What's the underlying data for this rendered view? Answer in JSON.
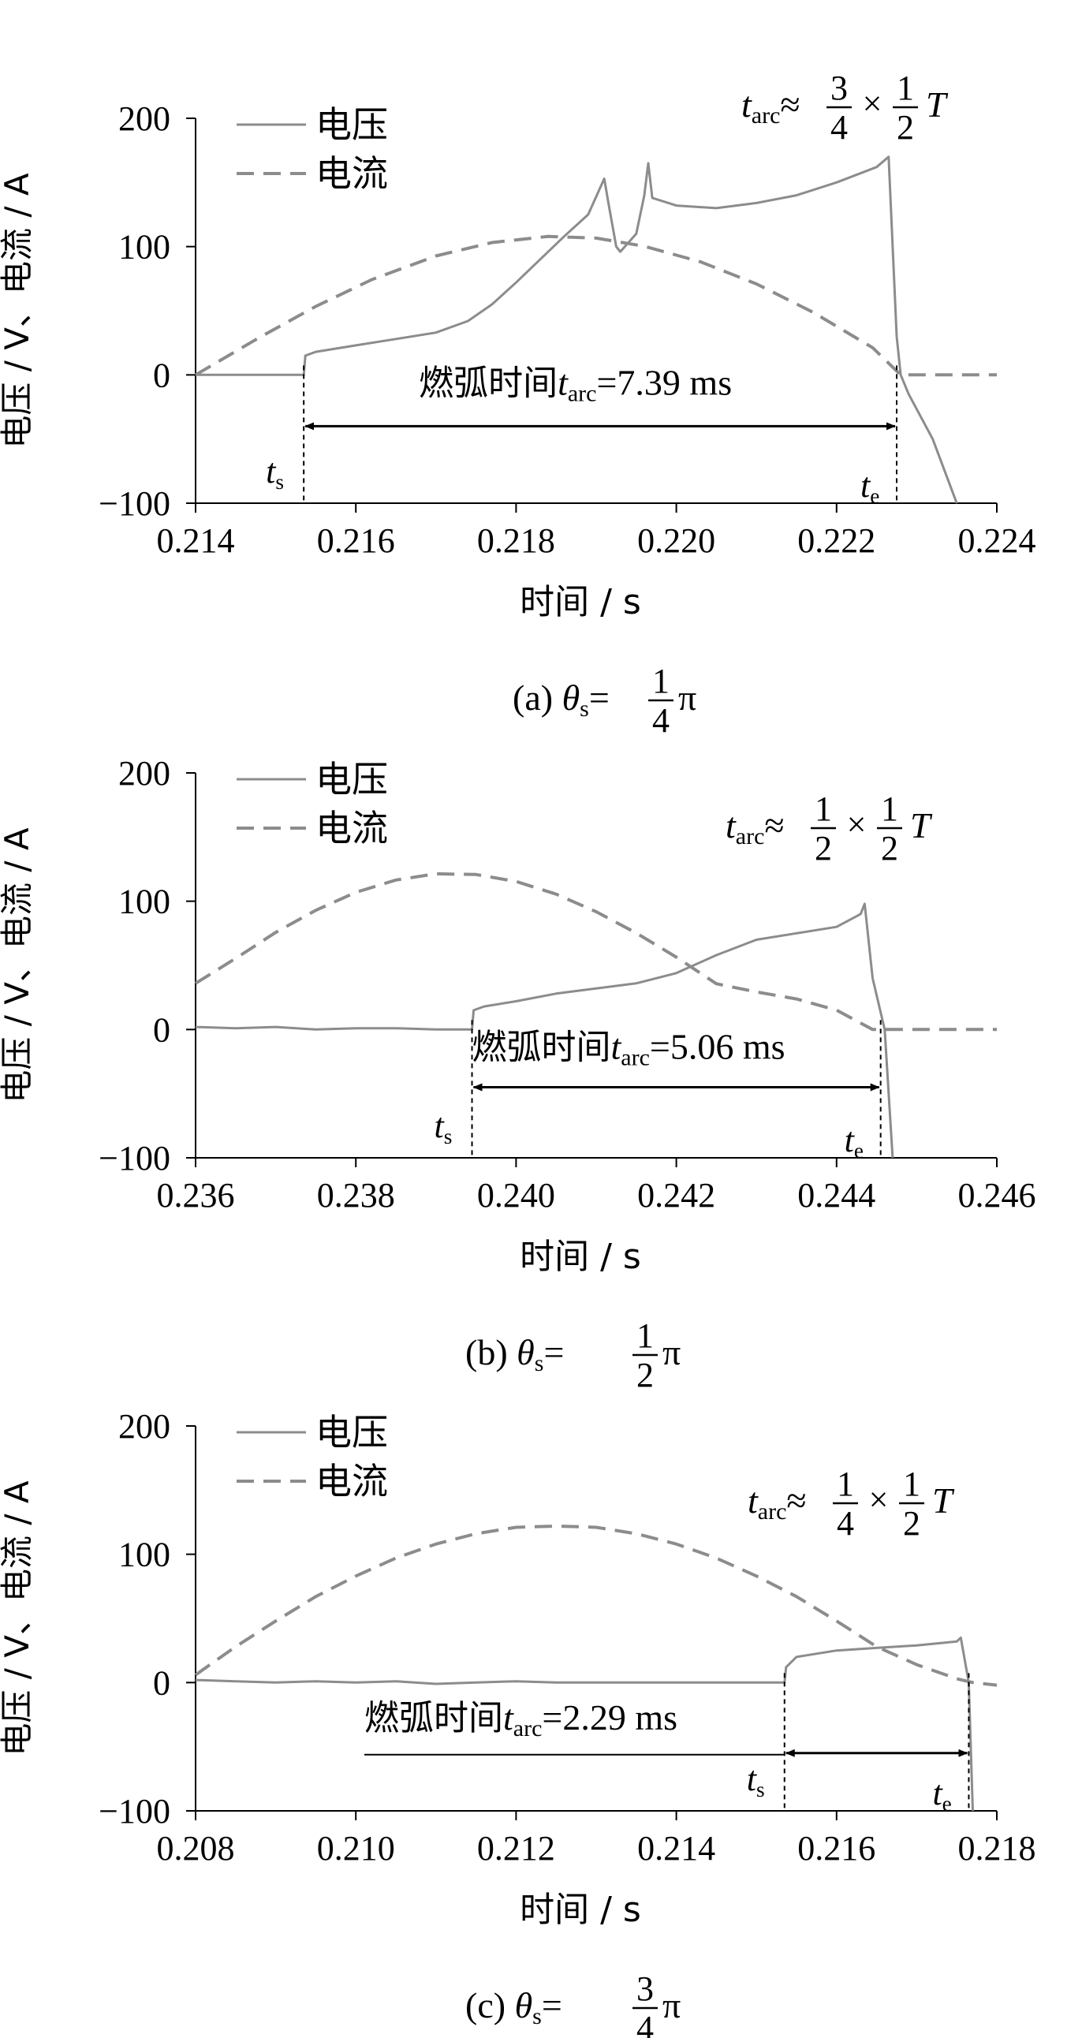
{
  "chart_data": [
    {
      "type": "line",
      "panel": "a",
      "caption": {
        "prefix": "(a) ",
        "theta": "θ",
        "sub": "s",
        "eq": "=",
        "num": "1",
        "den": "4",
        "pi": "π"
      },
      "xlabel": "时间 / s",
      "ylabel": "电压 / V、电流 / A",
      "xlim": [
        0.214,
        0.224
      ],
      "ylim": [
        -100,
        200
      ],
      "xticks": [
        "0.214",
        "0.216",
        "0.218",
        "0.220",
        "0.222",
        "0.224"
      ],
      "yticks": [
        "200",
        "100",
        "0",
        "−100"
      ],
      "legend": [
        "电压",
        "电流"
      ],
      "legend_position": "top-left",
      "arc_label": {
        "text": "燃弧时间",
        "t": "t",
        "sub": "arc",
        "value": "=7.39 ms"
      },
      "ts_label": {
        "t": "t",
        "sub": "s"
      },
      "te_label": {
        "t": "t",
        "sub": "e"
      },
      "ts": 0.21535,
      "te": 0.22275,
      "arrow_y": -40,
      "formula": {
        "t": "t",
        "sub": "arc",
        "approx": "≈",
        "f1_num": "3",
        "f1_den": "4",
        "times": "×",
        "f2_num": "1",
        "f2_den": "2",
        "T": "T"
      },
      "series": [
        {
          "name": "电压",
          "style": "solid",
          "x": [
            0.214,
            0.21535,
            0.21537,
            0.2155,
            0.216,
            0.2165,
            0.217,
            0.2174,
            0.2177,
            0.218,
            0.2183,
            0.2186,
            0.2189,
            0.2191,
            0.21915,
            0.21925,
            0.2193,
            0.2195,
            0.2196,
            0.21965,
            0.2197,
            0.22,
            0.2205,
            0.221,
            0.2215,
            0.222,
            0.2225,
            0.22265,
            0.22275,
            0.2228,
            0.2229,
            0.2232,
            0.2235
          ],
          "y": [
            0,
            0,
            15,
            18,
            23,
            28,
            33,
            42,
            55,
            72,
            90,
            108,
            125,
            153,
            135,
            100,
            96,
            110,
            140,
            165,
            138,
            132,
            130,
            134,
            140,
            150,
            162,
            170,
            30,
            0,
            -15,
            -50,
            -100
          ]
        },
        {
          "name": "电流",
          "style": "dashed",
          "x": [
            0.214,
            0.2148,
            0.2155,
            0.2162,
            0.217,
            0.2177,
            0.2184,
            0.219,
            0.2196,
            0.2203,
            0.221,
            0.2217,
            0.22245,
            0.2228,
            0.224
          ],
          "y": [
            0,
            29.3,
            53.4,
            74.3,
            92.7,
            103.2,
            107.9,
            106.6,
            100.3,
            88.2,
            70.9,
            49.0,
            21.2,
            0,
            0
          ]
        }
      ]
    },
    {
      "type": "line",
      "panel": "b",
      "caption": {
        "prefix": "(b)  ",
        "theta": "θ",
        "sub": "s",
        "eq": "=",
        "num": "1",
        "den": "2",
        "pi": "π"
      },
      "xlabel": "时间 / s",
      "ylabel": "电压 / V、电流 / A",
      "xlim": [
        0.236,
        0.246
      ],
      "ylim": [
        -100,
        200
      ],
      "xticks": [
        "0.236",
        "0.238",
        "0.240",
        "0.242",
        "0.244",
        "0.246"
      ],
      "yticks": [
        "200",
        "100",
        "0",
        "−100"
      ],
      "legend": [
        "电压",
        "电流"
      ],
      "legend_position": "top-left",
      "arc_label": {
        "text": "燃弧时间",
        "t": "t",
        "sub": "arc",
        "value": "=5.06 ms"
      },
      "ts_label": {
        "t": "t",
        "sub": "s"
      },
      "te_label": {
        "t": "t",
        "sub": "e"
      },
      "ts": 0.23945,
      "te": 0.24455,
      "arrow_y": -45,
      "formula": {
        "t": "t",
        "sub": "arc",
        "approx": "≈",
        "f1_num": "1",
        "f1_den": "2",
        "times": "×",
        "f2_num": "1",
        "f2_den": "2",
        "T": "T"
      },
      "series": [
        {
          "name": "电压",
          "style": "solid",
          "x": [
            0.236,
            0.2365,
            0.237,
            0.2375,
            0.238,
            0.2385,
            0.239,
            0.23945,
            0.23947,
            0.2396,
            0.24,
            0.2405,
            0.241,
            0.2415,
            0.242,
            0.2425,
            0.243,
            0.2435,
            0.244,
            0.2443,
            0.24435,
            0.24445,
            0.2446,
            0.2447
          ],
          "y": [
            2,
            1,
            2,
            0,
            1,
            1,
            0,
            0,
            15,
            18,
            22,
            28,
            32,
            36,
            44,
            58,
            70,
            75,
            80,
            90,
            98,
            40,
            0,
            -100
          ]
        },
        {
          "name": "电流",
          "style": "dashed",
          "x": [
            0.236,
            0.2365,
            0.237,
            0.2375,
            0.238,
            0.2385,
            0.239,
            0.2395,
            0.24,
            0.2405,
            0.241,
            0.2415,
            0.242,
            0.2425,
            0.243,
            0.2435,
            0.244,
            0.24445,
            0.2446,
            0.246
          ],
          "y": [
            36.0,
            55.4,
            75.7,
            92.9,
            106.9,
            116.5,
            121.4,
            120.8,
            115.4,
            105.5,
            91.8,
            75.2,
            56.4,
            35.7,
            29.3,
            23.8,
            15.1,
            0,
            0,
            0
          ]
        }
      ]
    },
    {
      "type": "line",
      "panel": "c",
      "caption": {
        "prefix": "(c)  ",
        "theta": "θ",
        "sub": "s",
        "eq": "=",
        "num": "3",
        "den": "4",
        "pi": "π"
      },
      "xlabel": "时间 / s",
      "ylabel": "电压 / V、电流 / A",
      "xlim": [
        0.208,
        0.218
      ],
      "ylim": [
        -100,
        200
      ],
      "xticks": [
        "0.208",
        "0.210",
        "0.212",
        "0.214",
        "0.216",
        "0.218"
      ],
      "yticks": [
        "200",
        "100",
        "0",
        "−100"
      ],
      "legend": [
        "电压",
        "电流"
      ],
      "legend_position": "top-left",
      "arc_label": {
        "text": "燃弧时间",
        "t": "t",
        "sub": "arc",
        "value": "=2.29 ms"
      },
      "ts_label": {
        "t": "t",
        "sub": "s"
      },
      "te_label": {
        "t": "t",
        "sub": "e"
      },
      "ts": 0.21535,
      "te": 0.21765,
      "arrow_y": -55,
      "formula": {
        "t": "t",
        "sub": "arc",
        "approx": "≈",
        "f1_num": "1",
        "f1_den": "4",
        "times": "×",
        "f2_num": "1",
        "f2_den": "2",
        "T": "T"
      },
      "series": [
        {
          "name": "电压",
          "style": "solid",
          "x": [
            0.208,
            0.2085,
            0.209,
            0.2095,
            0.21,
            0.2105,
            0.211,
            0.2115,
            0.212,
            0.2125,
            0.213,
            0.2135,
            0.214,
            0.2145,
            0.215,
            0.21535,
            0.21537,
            0.2155,
            0.216,
            0.2165,
            0.217,
            0.2175,
            0.21755,
            0.21765,
            0.2177
          ],
          "y": [
            2,
            1,
            0,
            1,
            0,
            1,
            -1,
            0,
            1,
            0,
            0,
            0,
            0,
            0,
            0,
            0,
            12,
            20,
            25,
            27,
            29,
            32,
            35,
            0,
            -100
          ]
        },
        {
          "name": "电流",
          "style": "dashed",
          "x": [
            0.208,
            0.2085,
            0.209,
            0.2095,
            0.21,
            0.2105,
            0.211,
            0.2115,
            0.212,
            0.2125,
            0.213,
            0.2135,
            0.214,
            0.2145,
            0.215,
            0.2155,
            0.216,
            0.2165,
            0.217,
            0.2175,
            0.2177,
            0.218
          ],
          "y": [
            6,
            28,
            48,
            67,
            83,
            97,
            108,
            116,
            121,
            122,
            121,
            116,
            108,
            97,
            83,
            67,
            48,
            28,
            14,
            3,
            0,
            -2
          ]
        }
      ]
    }
  ]
}
